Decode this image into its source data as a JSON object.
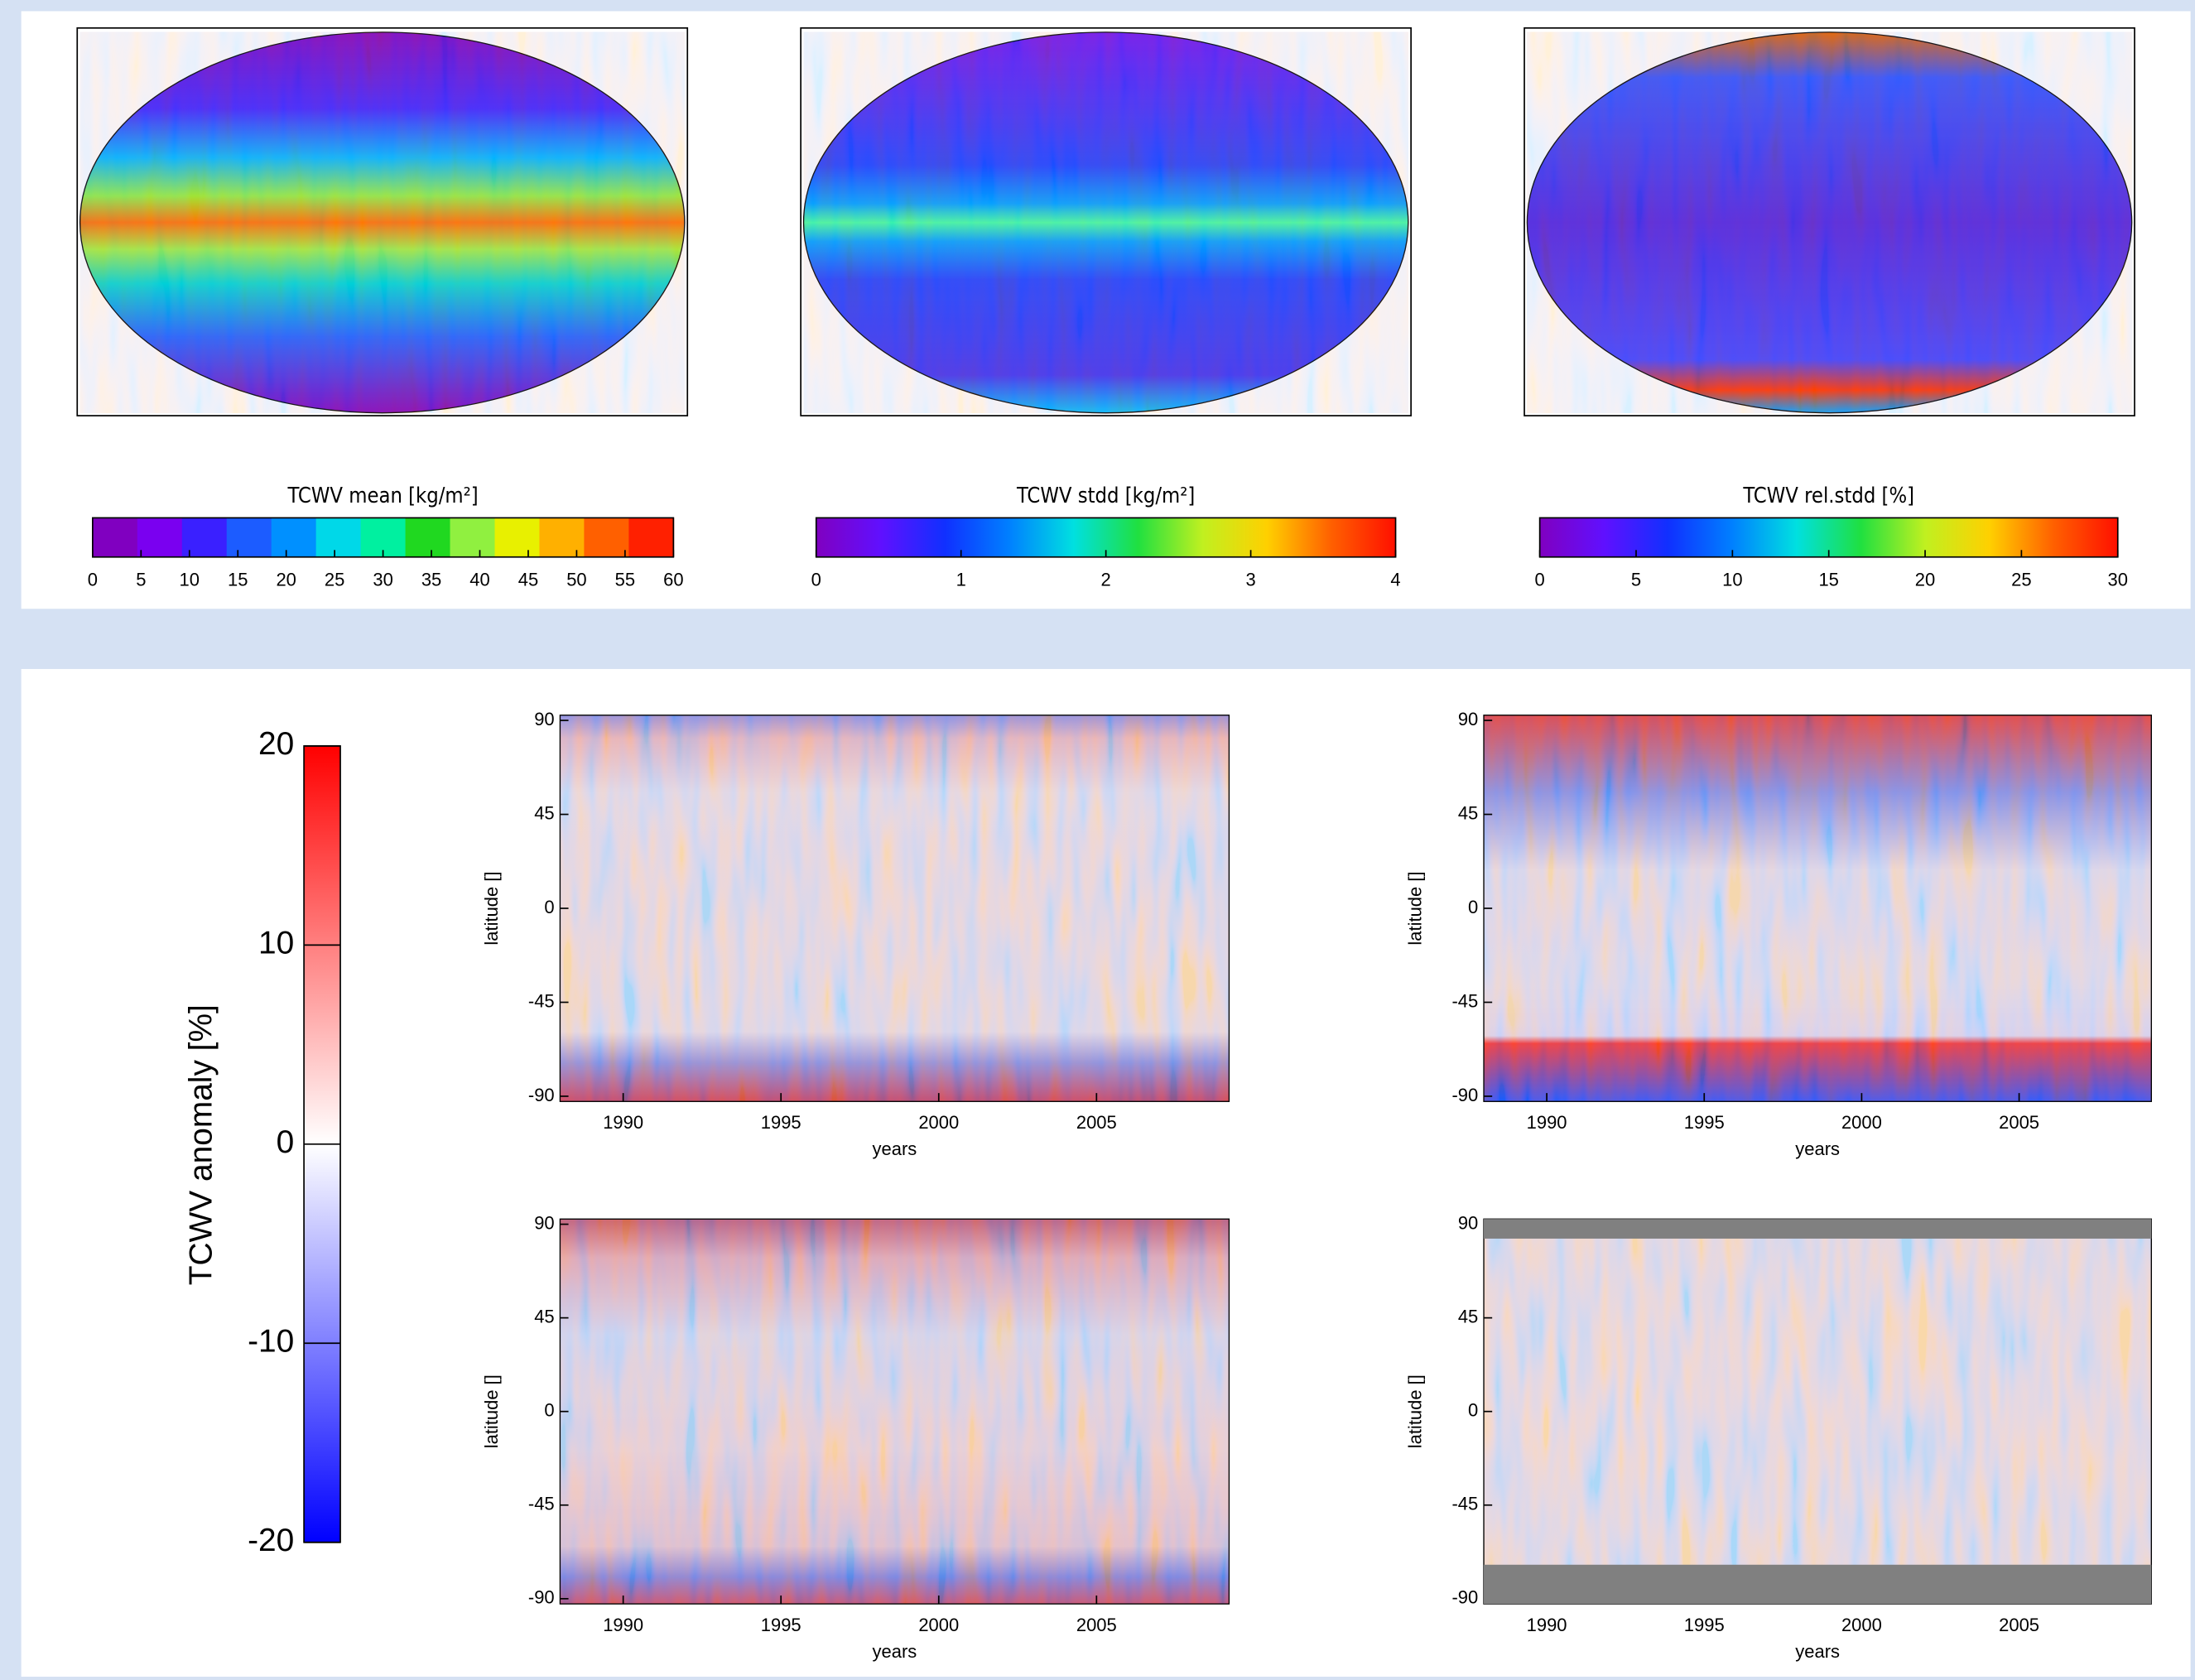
{
  "chart_data": [
    {
      "type": "map",
      "xlabel": "TCWV mean [kg/m²]",
      "xlim": [
        0,
        60
      ],
      "xticks": [
        0,
        5,
        10,
        15,
        20,
        25,
        30,
        35,
        40,
        45,
        50,
        55,
        60
      ],
      "discrete": true,
      "colors": [
        "#8000c0",
        "#7a00f0",
        "#3a20ff",
        "#1c5cff",
        "#0090ff",
        "#00d8e8",
        "#00f0a0",
        "#20d820",
        "#90f040",
        "#e8f000",
        "#ffb000",
        "#ff6000",
        "#ff2000"
      ]
    },
    {
      "type": "map",
      "xlabel": "TCWV stdd [kg/m²]",
      "xlim": [
        0,
        4
      ],
      "xticks": [
        0,
        1,
        2,
        3,
        4
      ],
      "discrete": false,
      "colors": [
        "#8000c0",
        "#6010ff",
        "#1030ff",
        "#0080ff",
        "#00e0e0",
        "#20e040",
        "#c0f020",
        "#ffd000",
        "#ff6000",
        "#ff1000"
      ]
    },
    {
      "type": "map",
      "xlabel": "TCWV rel.stdd [%]",
      "xlim": [
        0,
        30
      ],
      "xticks": [
        0,
        5,
        10,
        15,
        20,
        25,
        30
      ],
      "discrete": false,
      "colors": [
        "#8000c0",
        "#6010ff",
        "#1030ff",
        "#0080ff",
        "#00e0e0",
        "#20e040",
        "#c0f020",
        "#ffd000",
        "#ff6000",
        "#ff1000"
      ]
    },
    {
      "type": "colorbar",
      "ylabel": "TCWV anomaly [%]",
      "ylim": [
        -20,
        20
      ],
      "yticks": [
        -20,
        -10,
        0,
        10,
        20
      ],
      "colors": [
        "#0000ff",
        "#ffffff",
        "#ff0000"
      ]
    },
    {
      "type": "heatmap",
      "xlabel": "years",
      "ylabel": "latitude []",
      "xlim": [
        1988,
        2009.2
      ],
      "xticks": [
        1990,
        1995,
        2000,
        2005
      ],
      "ylim": [
        -92.5,
        92.5
      ],
      "yticks": [
        90,
        45,
        0,
        -45,
        -90
      ]
    },
    {
      "type": "heatmap",
      "xlabel": "years",
      "ylabel": "latitude []",
      "xlim": [
        1988,
        2009.2
      ],
      "xticks": [
        1990,
        1995,
        2000,
        2005
      ],
      "ylim": [
        -92.5,
        92.5
      ],
      "yticks": [
        90,
        45,
        0,
        -45,
        -90
      ]
    },
    {
      "type": "heatmap",
      "xlabel": "years",
      "ylabel": "latitude []",
      "xlim": [
        1988,
        2009.2
      ],
      "xticks": [
        1990,
        1995,
        2000,
        2005
      ],
      "ylim": [
        -92.5,
        92.5
      ],
      "yticks": [
        90,
        45,
        0,
        -45,
        -90
      ]
    },
    {
      "type": "heatmap",
      "xlabel": "years",
      "ylabel": "latitude []",
      "xlim": [
        1988,
        2009.2
      ],
      "xticks": [
        1990,
        1995,
        2000,
        2005
      ],
      "ylim": [
        -92.5,
        92.5
      ],
      "yticks": [
        90,
        45,
        0,
        -45,
        -90
      ]
    }
  ]
}
